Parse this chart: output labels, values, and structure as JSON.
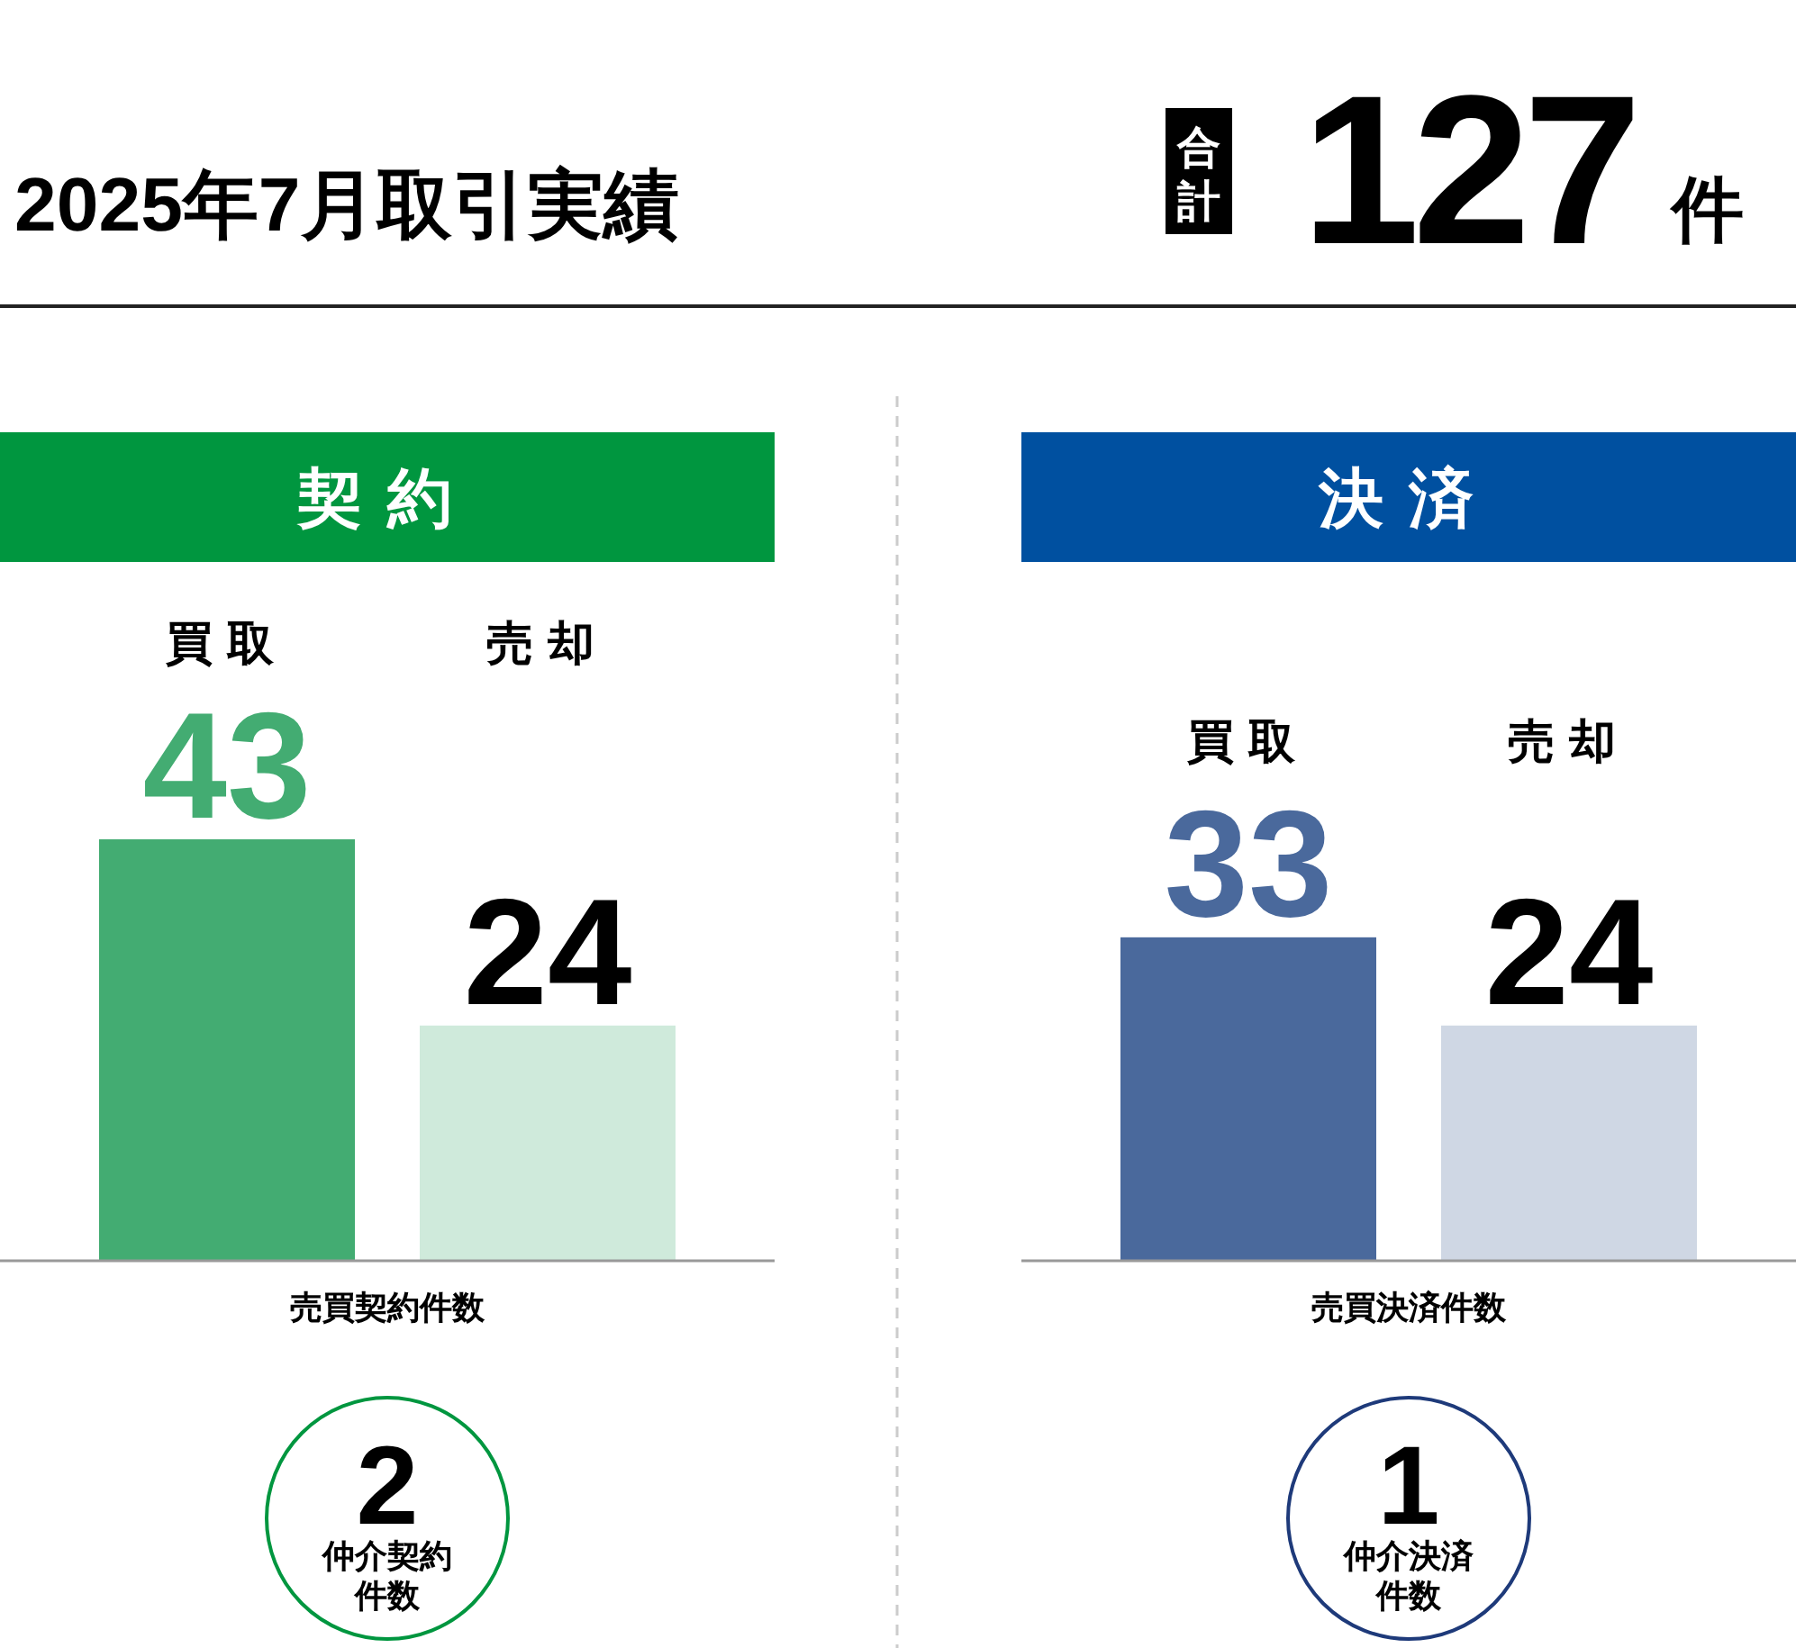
{
  "chart_data": [
    {
      "type": "other",
      "title": "2025年7月取引実績",
      "annotations": [
        "合計",
        "127",
        "件"
      ]
    },
    {
      "type": "bar",
      "title": "契約",
      "categories": [
        "買取",
        "売却"
      ],
      "values": [
        43,
        24
      ],
      "colors": [
        "#43ac72",
        "#cfeadb"
      ],
      "data_labels": true,
      "xlabel": "売買契約件数",
      "annotations": [
        "2",
        "仲介契約件数"
      ]
    },
    {
      "type": "bar",
      "title": "決済",
      "categories": [
        "買取",
        "売却"
      ],
      "values": [
        33,
        24
      ],
      "colors": [
        "#4a699c",
        "#cfd7e4"
      ],
      "data_labels": true,
      "xlabel": "売買決済件数",
      "annotations": [
        "1",
        "仲介決済件数"
      ]
    }
  ]
}
